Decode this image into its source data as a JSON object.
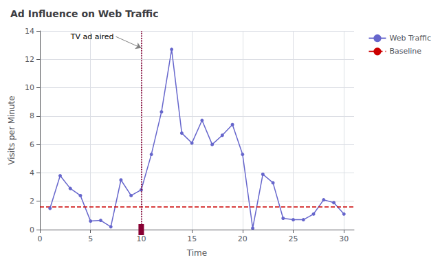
{
  "chart_data": {
    "type": "line",
    "title": "Ad Influence on Web Traffic",
    "xlabel": "Time",
    "ylabel": "Visits per Minute",
    "x": [
      1,
      2,
      3,
      4,
      5,
      6,
      7,
      8,
      9,
      10,
      11,
      12,
      13,
      14,
      15,
      16,
      17,
      18,
      19,
      20,
      21,
      22,
      23,
      24,
      25,
      26,
      27,
      28,
      29,
      30
    ],
    "series": [
      {
        "name": "Web Traffic",
        "color": "#6666cc",
        "marker": "circle",
        "line_style": "solid",
        "values": [
          1.5,
          3.8,
          2.9,
          2.4,
          0.6,
          0.65,
          0.2,
          3.5,
          2.4,
          2.8,
          5.3,
          8.3,
          12.7,
          6.8,
          6.1,
          7.7,
          6.0,
          6.65,
          7.4,
          5.3,
          0.1,
          3.9,
          3.3,
          0.8,
          0.7,
          0.7,
          1.1,
          2.1,
          1.9,
          1.1
        ]
      },
      {
        "name": "Baseline",
        "type": "hline",
        "color": "#cc0000",
        "line_style": "dashed",
        "y": 1.6
      }
    ],
    "annotations": [
      {
        "type": "vline",
        "x": 10,
        "color": "#880033",
        "line_style": "dotted"
      },
      {
        "text": "TV ad aired",
        "xy": [
          10,
          12.8
        ],
        "xytext": [
          7.5,
          13.6
        ]
      }
    ],
    "xlim": [
      0,
      31
    ],
    "ylim": [
      0,
      14
    ],
    "xticks": [
      0,
      5,
      10,
      15,
      20,
      25,
      30
    ],
    "yticks": [
      0,
      2,
      4,
      6,
      8,
      10,
      12,
      14
    ],
    "grid": true,
    "legend": "right"
  }
}
